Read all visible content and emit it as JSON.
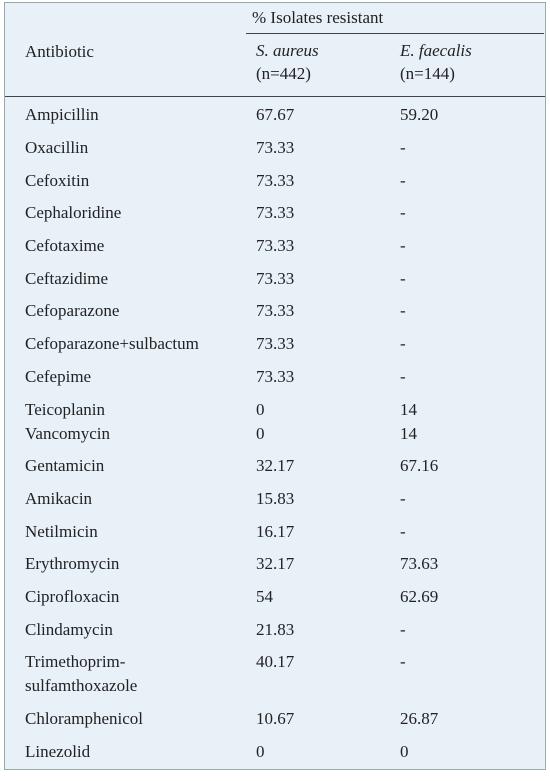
{
  "header": {
    "group_label": "% Isolates resistant",
    "row_header": "Antibiotic",
    "columns": [
      {
        "name": "S. aureus",
        "n": "(n=442)"
      },
      {
        "name": "E. faecalis",
        "n": "(n=144)"
      }
    ]
  },
  "table": {
    "rows": [
      [
        "Ampicillin",
        "67.67",
        "59.20"
      ],
      [
        "Oxacillin",
        "73.33",
        "-"
      ],
      [
        "Cefoxitin",
        "73.33",
        "-"
      ],
      [
        "Cephaloridine",
        "73.33",
        "-"
      ],
      [
        "Cefotaxime",
        "73.33",
        "-"
      ],
      [
        "Ceftazidime",
        "73.33",
        "-"
      ],
      [
        "Cefoparazone",
        "73.33",
        "-"
      ],
      [
        "Cefoparazone+sulbactum",
        "73.33",
        "-"
      ],
      [
        "Cefepime",
        "73.33",
        "-"
      ],
      [
        "Teicoplanin",
        "0",
        "14"
      ],
      [
        "Vancomycin",
        "0",
        "14"
      ],
      [
        "Gentamicin",
        "32.17",
        "67.16"
      ],
      [
        "Amikacin",
        "15.83",
        "-"
      ],
      [
        "Netilmicin",
        "16.17",
        "-"
      ],
      [
        "Erythromycin",
        "32.17",
        "73.63"
      ],
      [
        "Ciprofloxacin",
        "54",
        "62.69"
      ],
      [
        "Clindamycin",
        "21.83",
        "-"
      ],
      [
        "Trimethoprim-\nsulfamthoxazole",
        "40.17",
        "-"
      ],
      [
        "Chloramphenicol",
        "10.67",
        "26.87"
      ],
      [
        "Linezolid",
        "0",
        "0"
      ]
    ]
  }
}
